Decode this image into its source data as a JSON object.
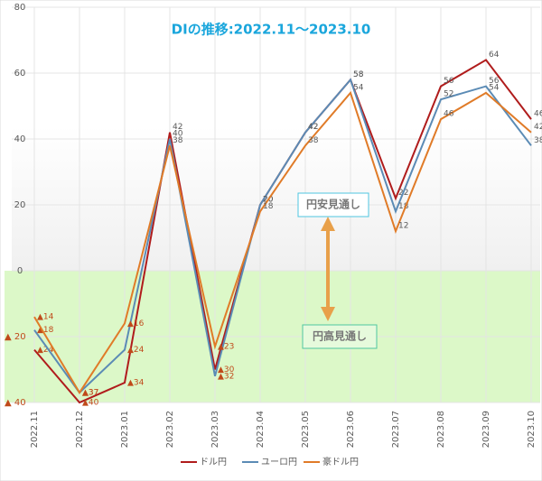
{
  "chart_data": {
    "type": "line",
    "title": "DIの推移:2022.11〜2023.10",
    "categories": [
      "2022.11",
      "2022.12",
      "2023.01",
      "2023.02",
      "2023.03",
      "2023.04",
      "2023.05",
      "2023.06",
      "2023.07",
      "2023.08",
      "2023.09",
      "2023.10"
    ],
    "series": [
      {
        "name": "ドル円",
        "color": "#b01c1c",
        "values": [
          -24,
          -40,
          -34,
          42,
          -30,
          20,
          42,
          58,
          22,
          56,
          64,
          46
        ],
        "value_labels": [
          "▲24",
          "▲40",
          "▲34",
          "42",
          "▲30",
          "20",
          "42",
          "58",
          "22",
          "56",
          "64",
          "46"
        ]
      },
      {
        "name": "ユーロ円",
        "color": "#5b8bb5",
        "values": [
          -18,
          -37,
          -24,
          40,
          -32,
          20,
          42,
          58,
          18,
          52,
          56,
          38
        ],
        "value_labels": [
          "▲18",
          "▲37",
          "▲24",
          "40",
          "▲32",
          "20",
          "42",
          "58",
          "18",
          "52",
          "56",
          "38"
        ]
      },
      {
        "name": "豪ドル円",
        "color": "#e07b28",
        "values": [
          -14,
          -37,
          -16,
          38,
          -23,
          18,
          38,
          54,
          12,
          46,
          54,
          42
        ],
        "value_labels": [
          "▲14",
          "▲37",
          "▲16",
          "38",
          "▲23",
          "18",
          "38",
          "54",
          "12",
          "46",
          "54",
          "42"
        ]
      }
    ],
    "ylim": [
      -40,
      80
    ],
    "yticks": [
      {
        "value": -40,
        "label": "▲ 40"
      },
      {
        "value": -20,
        "label": "▲ 20"
      },
      0,
      20,
      40,
      60,
      80
    ],
    "grid": true,
    "annotations": [
      "円安見通し",
      "円高見通し"
    ]
  }
}
